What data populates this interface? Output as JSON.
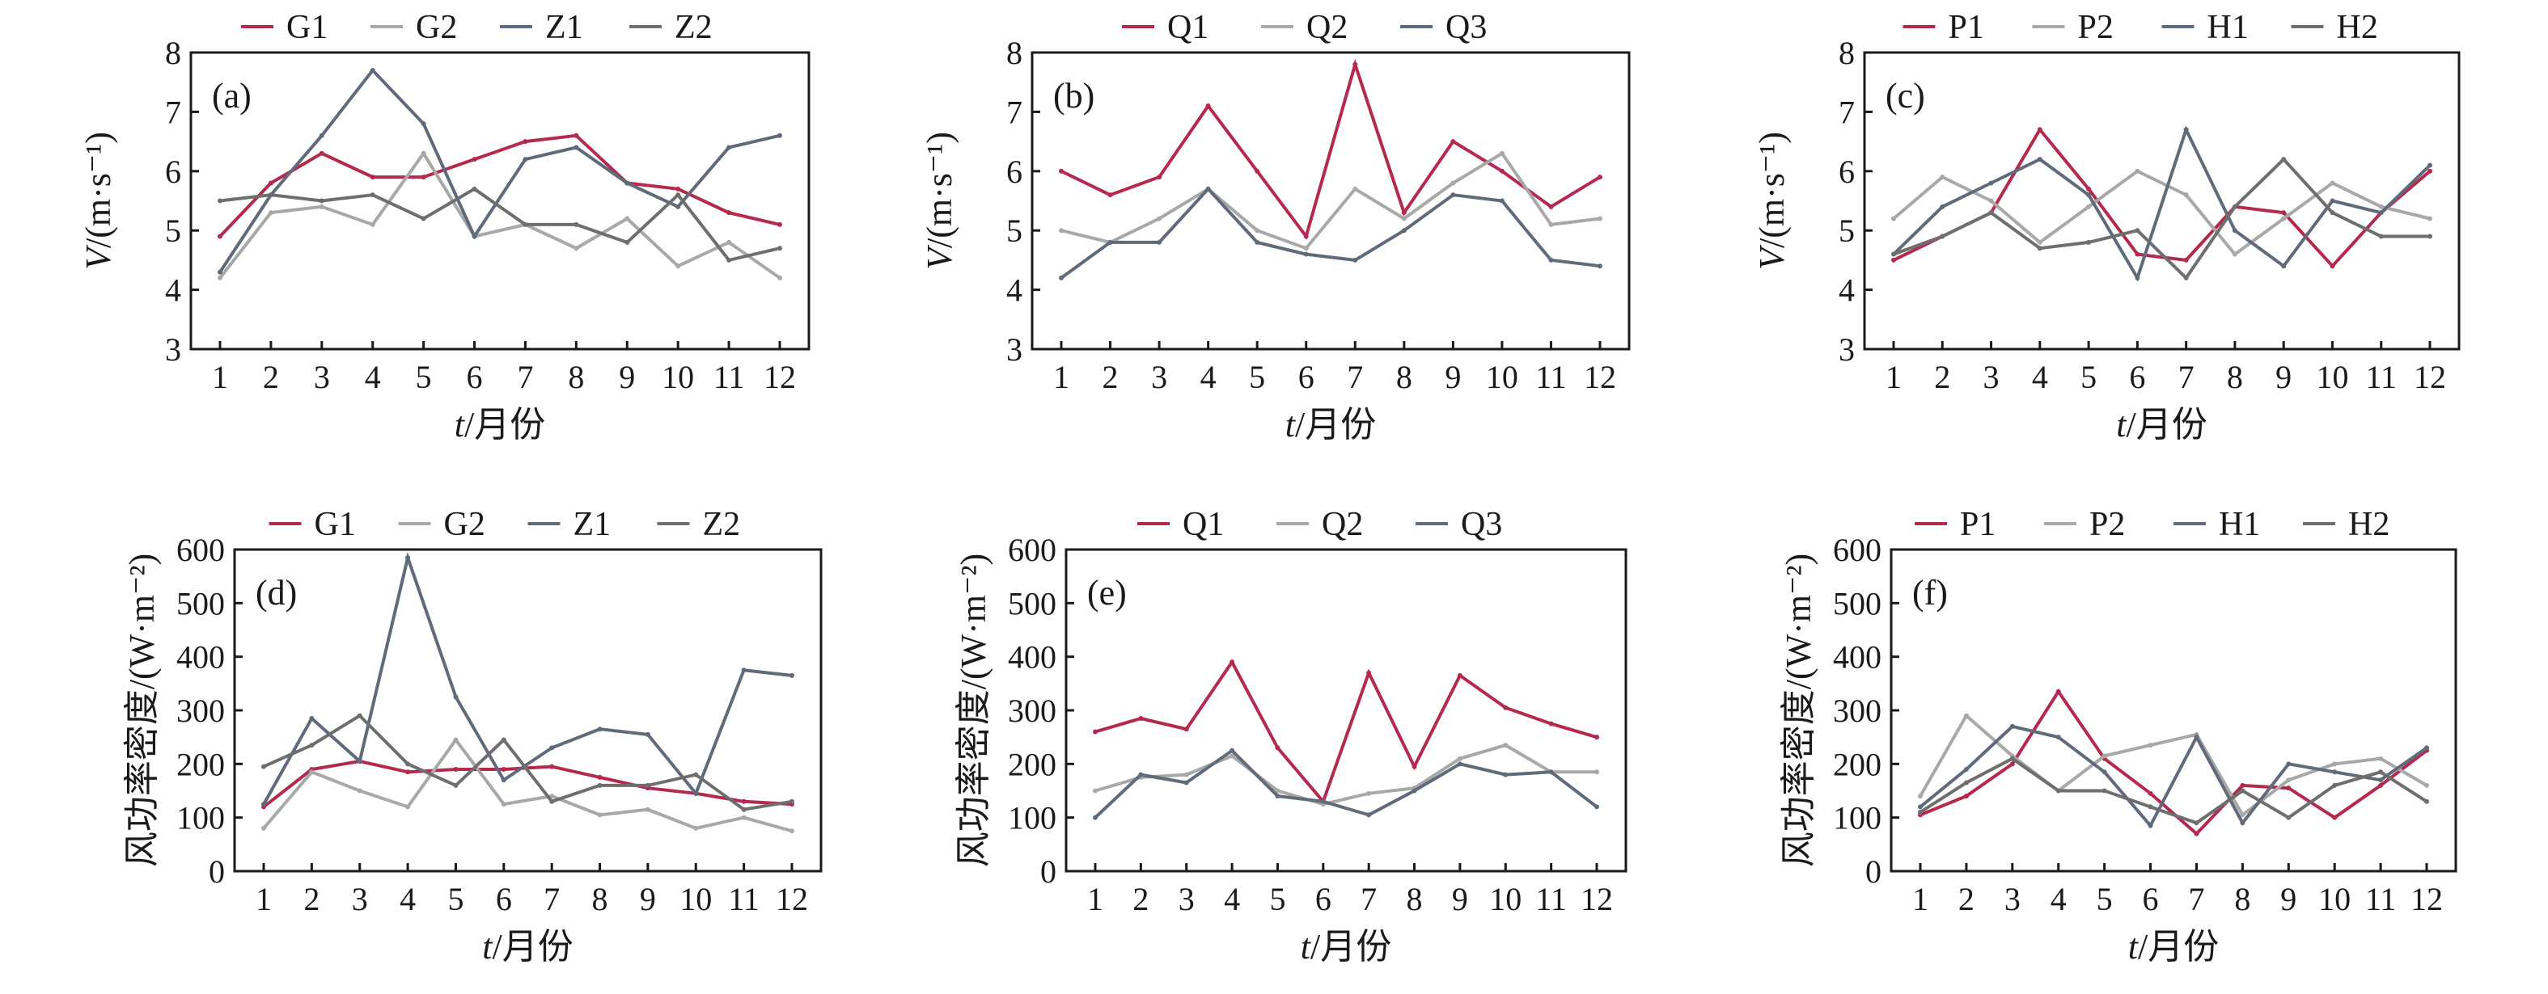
{
  "chart_data": [
    {
      "type": "line",
      "panel_label": "(a)",
      "xlabel": "t/月份",
      "ylabel": "V/(m·s⁻¹)",
      "x": [
        1,
        2,
        3,
        4,
        5,
        6,
        7,
        8,
        9,
        10,
        11,
        12
      ],
      "ylim": [
        3,
        8
      ],
      "yticks": [
        3,
        4,
        5,
        6,
        7,
        8
      ],
      "grid": false,
      "legend": "top",
      "series": [
        {
          "name": "G1",
          "color": "#b5294e",
          "values": [
            4.9,
            5.8,
            6.3,
            5.9,
            5.9,
            6.2,
            6.5,
            6.6,
            5.8,
            5.7,
            5.3,
            5.1
          ]
        },
        {
          "name": "G2",
          "color": "#a8a8a8",
          "values": [
            4.2,
            5.3,
            5.4,
            5.1,
            6.3,
            4.9,
            5.1,
            4.7,
            5.2,
            4.4,
            4.8,
            4.2
          ]
        },
        {
          "name": "Z1",
          "color": "#5f6b7a",
          "values": [
            4.3,
            5.6,
            6.6,
            7.7,
            6.8,
            4.9,
            6.2,
            6.4,
            5.8,
            5.4,
            6.4,
            6.6
          ]
        },
        {
          "name": "Z2",
          "color": "#6e6e6e",
          "values": [
            5.5,
            5.6,
            5.5,
            5.6,
            5.2,
            5.7,
            5.1,
            5.1,
            4.8,
            5.6,
            4.5,
            4.7
          ]
        }
      ]
    },
    {
      "type": "line",
      "panel_label": "(b)",
      "xlabel": "t/月份",
      "ylabel": "V/(m·s⁻¹)",
      "x": [
        1,
        2,
        3,
        4,
        5,
        6,
        7,
        8,
        9,
        10,
        11,
        12
      ],
      "ylim": [
        3,
        8
      ],
      "yticks": [
        3,
        4,
        5,
        6,
        7,
        8
      ],
      "grid": false,
      "legend": "top",
      "series": [
        {
          "name": "Q1",
          "color": "#b5294e",
          "values": [
            6.0,
            5.6,
            5.9,
            7.1,
            6.0,
            4.9,
            7.8,
            5.3,
            6.5,
            6.0,
            5.4,
            5.9
          ]
        },
        {
          "name": "Q2",
          "color": "#a8a8a8",
          "values": [
            5.0,
            4.8,
            5.2,
            5.7,
            5.0,
            4.7,
            5.7,
            5.2,
            5.8,
            6.3,
            5.1,
            5.2
          ]
        },
        {
          "name": "Q3",
          "color": "#5f6b7a",
          "values": [
            4.2,
            4.8,
            4.8,
            5.7,
            4.8,
            4.6,
            4.5,
            5.0,
            5.6,
            5.5,
            4.5,
            4.4
          ]
        }
      ]
    },
    {
      "type": "line",
      "panel_label": "(c)",
      "xlabel": "t/月份",
      "ylabel": "V/(m·s⁻¹)",
      "x": [
        1,
        2,
        3,
        4,
        5,
        6,
        7,
        8,
        9,
        10,
        11,
        12
      ],
      "ylim": [
        3,
        8
      ],
      "yticks": [
        3,
        4,
        5,
        6,
        7,
        8
      ],
      "grid": false,
      "legend": "top",
      "series": [
        {
          "name": "P1",
          "color": "#b5294e",
          "values": [
            4.5,
            4.9,
            5.3,
            6.7,
            5.7,
            4.6,
            4.5,
            5.4,
            5.3,
            4.4,
            5.3,
            6.0
          ]
        },
        {
          "name": "P2",
          "color": "#a8a8a8",
          "values": [
            5.2,
            5.9,
            5.5,
            4.8,
            5.4,
            6.0,
            5.6,
            4.6,
            5.2,
            5.8,
            5.4,
            5.2
          ]
        },
        {
          "name": "H1",
          "color": "#5f6b7a",
          "values": [
            4.6,
            5.4,
            5.8,
            6.2,
            5.6,
            4.2,
            6.7,
            5.0,
            4.4,
            5.5,
            5.3,
            6.1
          ]
        },
        {
          "name": "H2",
          "color": "#6e6e6e",
          "values": [
            4.6,
            4.9,
            5.3,
            4.7,
            4.8,
            5.0,
            4.2,
            5.4,
            6.2,
            5.3,
            4.9,
            4.9
          ]
        }
      ]
    },
    {
      "type": "line",
      "panel_label": "(d)",
      "xlabel": "t/月份",
      "ylabel": "风功率密度/(W·m⁻²)",
      "x": [
        1,
        2,
        3,
        4,
        5,
        6,
        7,
        8,
        9,
        10,
        11,
        12
      ],
      "ylim": [
        0,
        600
      ],
      "yticks": [
        0,
        100,
        200,
        300,
        400,
        500,
        600
      ],
      "grid": false,
      "legend": "top",
      "series": [
        {
          "name": "G1",
          "color": "#b5294e",
          "values": [
            120,
            190,
            205,
            185,
            190,
            190,
            195,
            175,
            155,
            145,
            130,
            125
          ]
        },
        {
          "name": "G2",
          "color": "#a8a8a8",
          "values": [
            80,
            185,
            150,
            120,
            245,
            125,
            140,
            105,
            115,
            80,
            100,
            75
          ]
        },
        {
          "name": "Z1",
          "color": "#5f6b7a",
          "values": [
            125,
            285,
            205,
            585,
            325,
            170,
            230,
            265,
            255,
            145,
            375,
            365
          ]
        },
        {
          "name": "Z2",
          "color": "#6e6e6e",
          "values": [
            195,
            235,
            290,
            200,
            160,
            245,
            130,
            160,
            160,
            180,
            115,
            130
          ]
        }
      ]
    },
    {
      "type": "line",
      "panel_label": "(e)",
      "xlabel": "t/月份",
      "ylabel": "风功率密度/(W·m⁻²)",
      "x": [
        1,
        2,
        3,
        4,
        5,
        6,
        7,
        8,
        9,
        10,
        11,
        12
      ],
      "ylim": [
        0,
        600
      ],
      "yticks": [
        0,
        100,
        200,
        300,
        400,
        500,
        600
      ],
      "grid": false,
      "legend": "top",
      "series": [
        {
          "name": "Q1",
          "color": "#b5294e",
          "values": [
            260,
            285,
            265,
            390,
            230,
            130,
            370,
            195,
            365,
            305,
            275,
            250
          ]
        },
        {
          "name": "Q2",
          "color": "#a8a8a8",
          "values": [
            150,
            175,
            180,
            215,
            150,
            125,
            145,
            155,
            210,
            235,
            185,
            185
          ]
        },
        {
          "name": "Q3",
          "color": "#5f6b7a",
          "values": [
            100,
            180,
            165,
            225,
            140,
            130,
            105,
            150,
            200,
            180,
            185,
            120
          ]
        }
      ]
    },
    {
      "type": "line",
      "panel_label": "(f)",
      "xlabel": "t/月份",
      "ylabel": "风功率密度/(W·m⁻²)",
      "x": [
        1,
        2,
        3,
        4,
        5,
        6,
        7,
        8,
        9,
        10,
        11,
        12
      ],
      "ylim": [
        0,
        600
      ],
      "yticks": [
        0,
        100,
        200,
        300,
        400,
        500,
        600
      ],
      "grid": false,
      "legend": "top",
      "series": [
        {
          "name": "P1",
          "color": "#b5294e",
          "values": [
            105,
            140,
            200,
            335,
            210,
            145,
            70,
            160,
            155,
            100,
            160,
            225
          ]
        },
        {
          "name": "P2",
          "color": "#a8a8a8",
          "values": [
            140,
            290,
            215,
            150,
            215,
            235,
            255,
            105,
            170,
            200,
            210,
            160
          ]
        },
        {
          "name": "H1",
          "color": "#5f6b7a",
          "values": [
            120,
            190,
            270,
            250,
            185,
            85,
            250,
            90,
            200,
            185,
            170,
            230
          ]
        },
        {
          "name": "H2",
          "color": "#6e6e6e",
          "values": [
            110,
            165,
            210,
            150,
            150,
            120,
            90,
            150,
            100,
            160,
            185,
            130
          ]
        }
      ]
    }
  ]
}
